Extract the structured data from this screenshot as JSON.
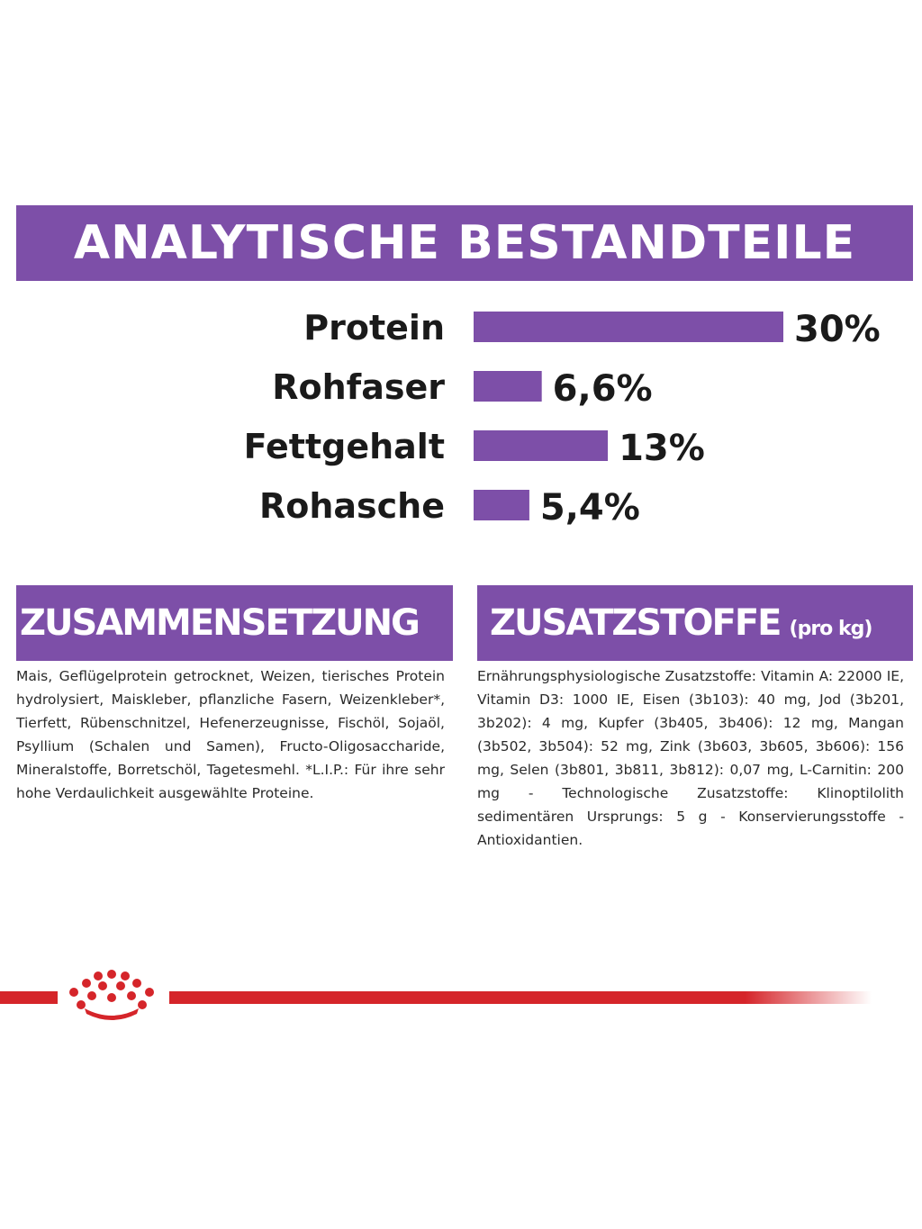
{
  "analytics": {
    "title": "ANALYTISCHE BESTANDTEILE"
  },
  "chart_data": {
    "type": "bar",
    "orientation": "horizontal",
    "categories": [
      "Protein",
      "Rohfaser",
      "Fettgehalt",
      "Rohasche"
    ],
    "values": [
      30,
      6.6,
      13,
      5.4
    ],
    "value_labels": [
      "30%",
      "6,6%",
      "13%",
      "5,4%"
    ],
    "bar_color": "#7d4fa8",
    "xlim": [
      0,
      30
    ],
    "grid": false
  },
  "composition": {
    "title": "ZUSAMMENSETZUNG",
    "text": "Mais, Geflügelprotein getrocknet, Weizen, tierisches Protein hydrolysiert, Maiskleber, pflanzliche Fasern, Weizenkleber*, Tierfett, Rübenschnitzel, Hefenerzeugnisse, Fischöl, Sojaöl, Psyllium (Schalen und Samen), Fructo-Oligosaccharide, Mineralstoffe, Borretschöl, Tagetesmehl. *L.I.P.: Für ihre sehr hohe Verdaulichkeit ausgewählte Proteine."
  },
  "additives": {
    "title": "ZUSATZSTOFFE",
    "unit": "(pro kg)",
    "text": "Ernährungsphysiologische Zusatzstoffe: Vitamin A: 22000 IE, Vitamin D3: 1000 IE, Eisen (3b103): 40 mg, Jod (3b201, 3b202): 4 mg, Kupfer (3b405, 3b406): 12 mg, Mangan (3b502, 3b504): 52 mg, Zink (3b603, 3b605, 3b606): 156 mg, Selen (3b801, 3b811, 3b812): 0,07 mg, L-Carnitin: 200 mg - Technologische Zusatzstoffe: Klinoptilolith sedimentären Ursprungs: 5 g - Konservierungsstoffe - Antioxidantien."
  },
  "brand": {
    "logo_icon": "crown-icon",
    "accent_color": "#d5252a"
  }
}
